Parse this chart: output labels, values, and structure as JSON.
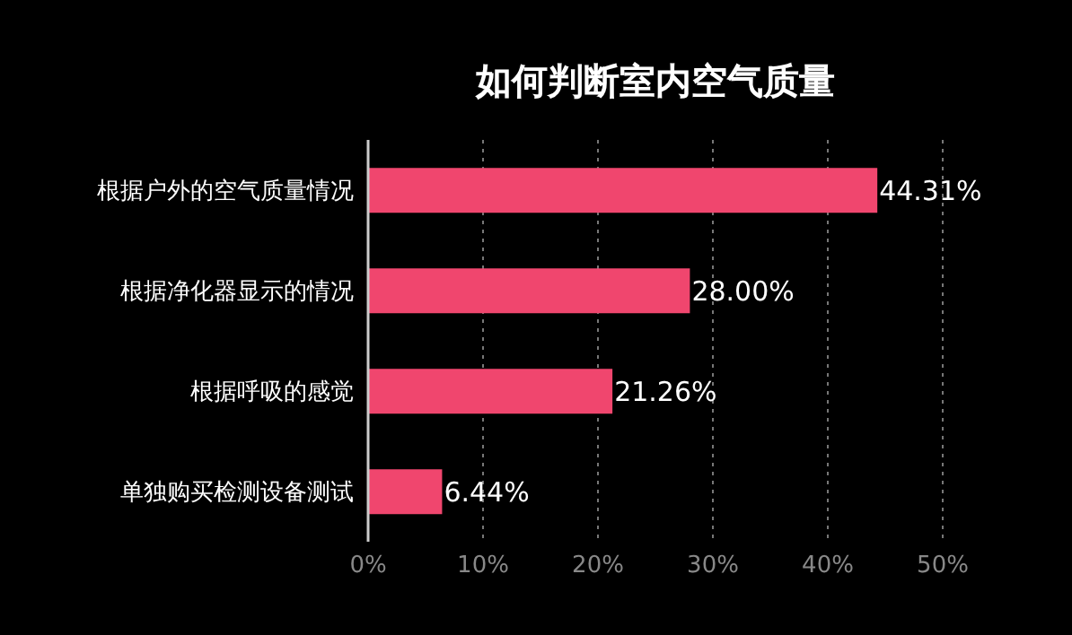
{
  "chart_data": {
    "type": "bar",
    "orientation": "horizontal",
    "title": "如何判断室内空气质量",
    "categories": [
      "根据户外的空气质量情况",
      "根据净化器显示的情况",
      "根据呼吸的感觉",
      "单独购买检测设备测试"
    ],
    "values": [
      44.31,
      28.0,
      21.26,
      6.44
    ],
    "value_labels": [
      "44.31%",
      "28.00%",
      "21.26%",
      "6.44%"
    ],
    "color": "#f0466e",
    "xlim": [
      0,
      50
    ],
    "xticks": [
      {
        "value": 0,
        "label": "0%"
      },
      {
        "value": 10,
        "label": "10%"
      },
      {
        "value": 20,
        "label": "20%"
      },
      {
        "value": 30,
        "label": "30%"
      },
      {
        "value": 40,
        "label": "40%"
      },
      {
        "value": 50,
        "label": "50%"
      }
    ],
    "grid": "x",
    "legend": false
  }
}
